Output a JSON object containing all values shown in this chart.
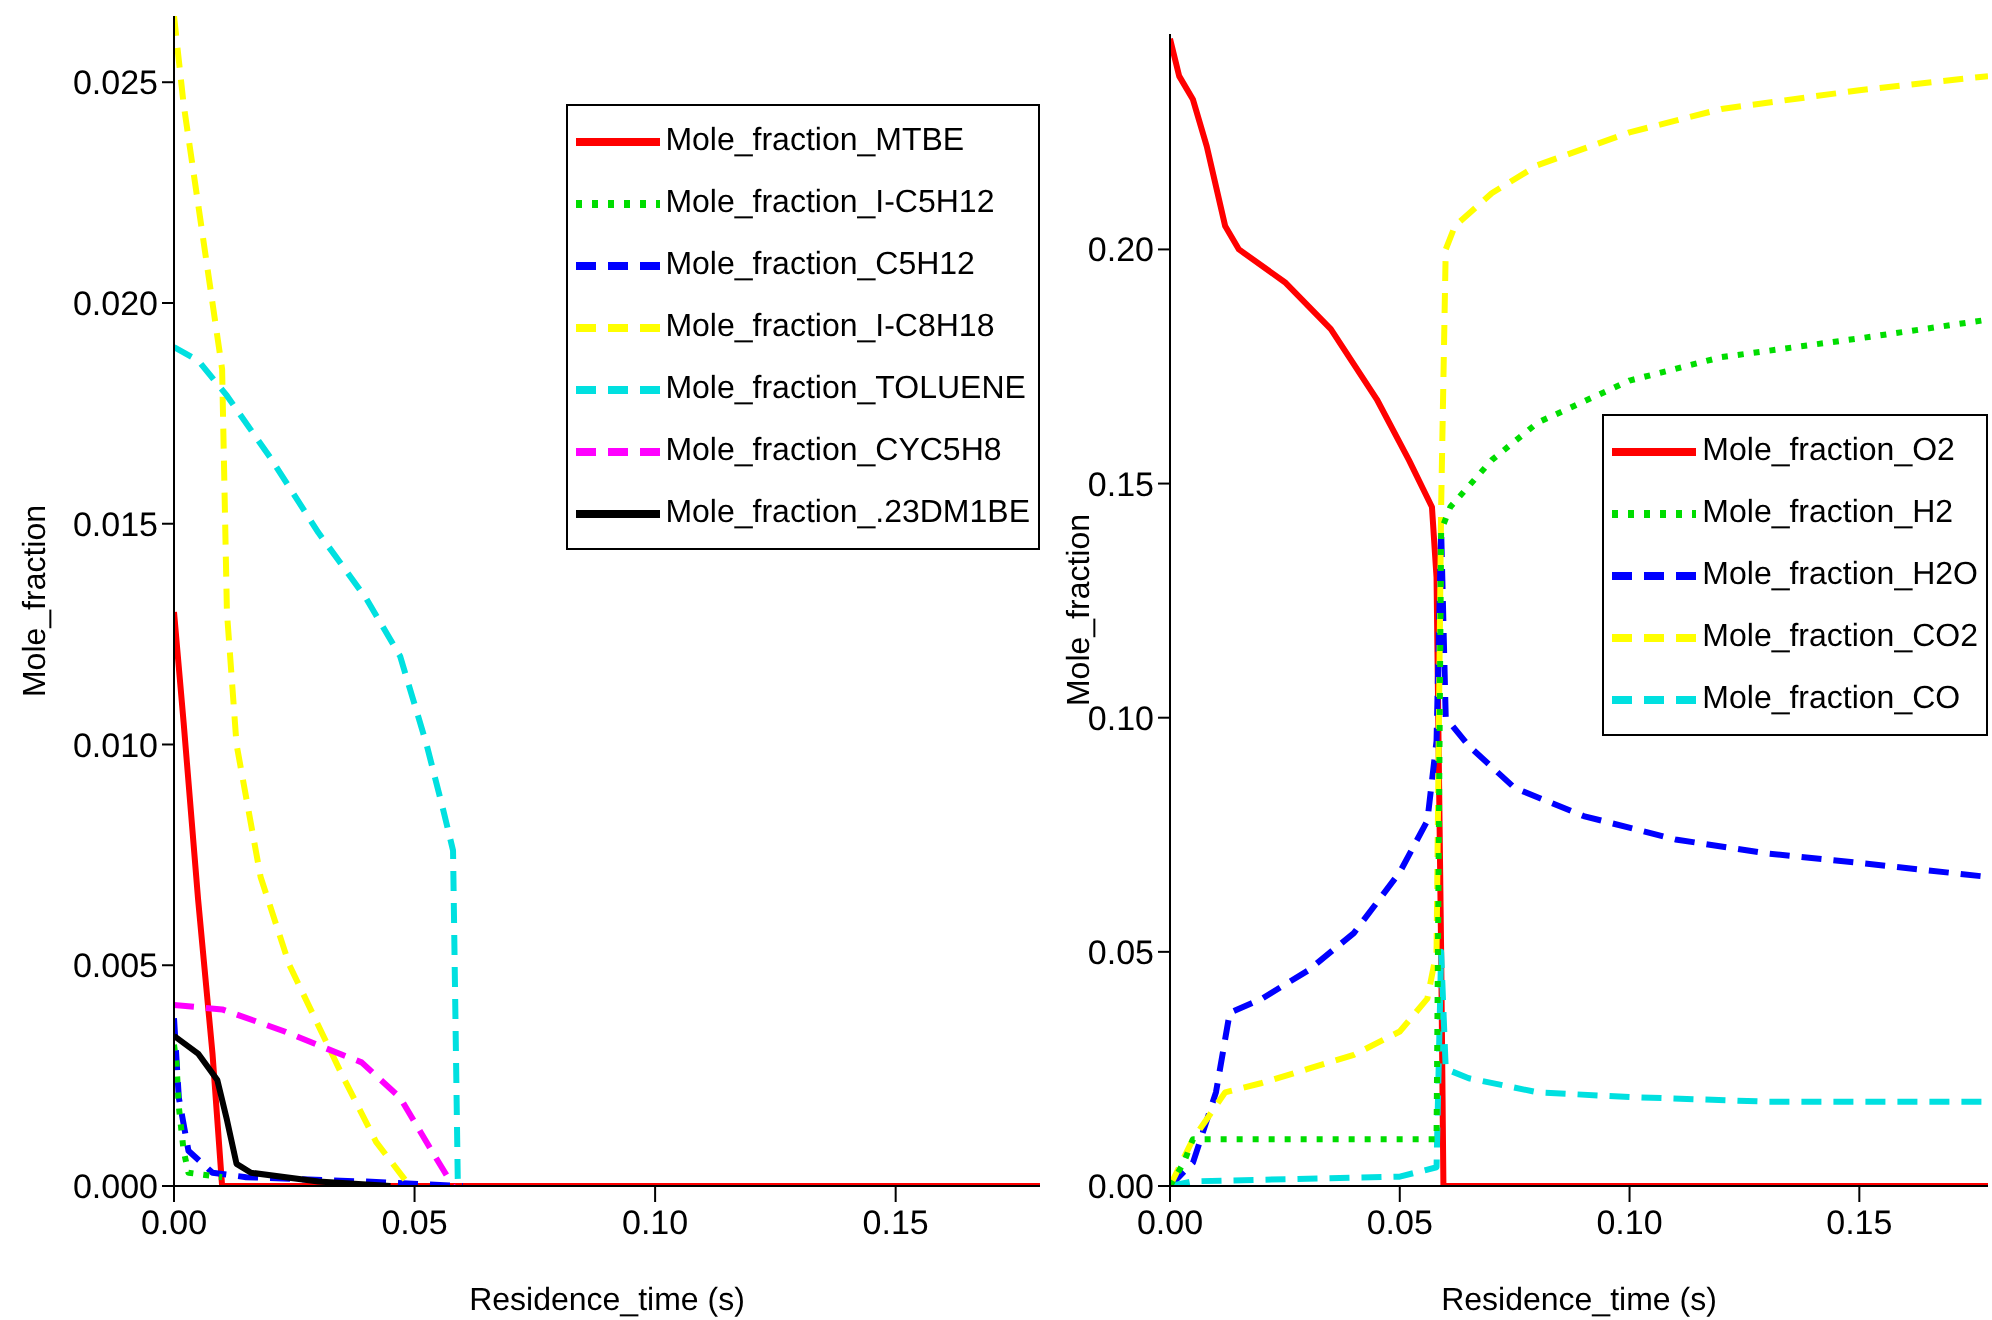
{
  "chart_data": [
    {
      "type": "line",
      "xlabel": "Residence_time (s)",
      "ylabel": "Mole_fraction",
      "xlim": [
        0,
        0.18
      ],
      "ylim": [
        0,
        0.0265
      ],
      "xticks": [
        {
          "value": 0,
          "label": "0.00"
        },
        {
          "value": 0.05,
          "label": "0.05"
        },
        {
          "value": 0.1,
          "label": "0.10"
        },
        {
          "value": 0.15,
          "label": "0.15"
        }
      ],
      "yticks": [
        {
          "value": 0,
          "label": "0.000"
        },
        0.005,
        {
          "value": 0.01,
          "label": "0.010"
        },
        0.015,
        {
          "value": 0.02,
          "label": "0.020"
        },
        0.025
      ],
      "legend": "top right",
      "grid": false,
      "marker": "none",
      "series": [
        {
          "name": "Mole_fraction_MTBE",
          "color": "#ff0000",
          "line_style": "solid",
          "x": [
            0,
            0.002,
            0.005,
            0.008,
            0.01,
            0.18
          ],
          "values": [
            0.013,
            0.0105,
            0.0065,
            0.003,
            0,
            0
          ]
        },
        {
          "name": "Mole_fraction_I-C5H12",
          "color": "#00dd00",
          "line_style": "dotted",
          "x": [
            0,
            0.0005,
            0.001,
            0.002,
            0.003,
            0.01
          ],
          "values": [
            0.0032,
            0.0028,
            0.0018,
            0.0008,
            0.0003,
            0.0002
          ]
        },
        {
          "name": "Mole_fraction_C5H12",
          "color": "#0000ff",
          "line_style": "dashed",
          "x": [
            0,
            0.001,
            0.003,
            0.008,
            0.015,
            0.04,
            0.06
          ],
          "values": [
            0.0038,
            0.002,
            0.0008,
            0.0003,
            0.0002,
            0.0001,
            0
          ]
        },
        {
          "name": "Mole_fraction_I-C8H18",
          "color": "#ffff00",
          "line_style": "dashed",
          "x": [
            0,
            0.002,
            0.006,
            0.01,
            0.011,
            0.013,
            0.018,
            0.024,
            0.035,
            0.042,
            0.049
          ],
          "values": [
            0.0265,
            0.0245,
            0.0215,
            0.0185,
            0.013,
            0.01,
            0.007,
            0.005,
            0.0025,
            0.001,
            0
          ]
        },
        {
          "name": "Mole_fraction_TOLUENE",
          "color": "#00e0e0",
          "line_style": "dashed",
          "x": [
            0,
            0.005,
            0.011,
            0.02,
            0.03,
            0.04,
            0.047,
            0.0525,
            0.056,
            0.058,
            0.059
          ],
          "values": [
            0.019,
            0.0187,
            0.0179,
            0.0165,
            0.0148,
            0.0133,
            0.012,
            0.01,
            0.0085,
            0.0076,
            0
          ]
        },
        {
          "name": "Mole_fraction_CYC5H8",
          "color": "#ff00ff",
          "line_style": "dashed",
          "x": [
            0,
            0.01,
            0.023,
            0.032,
            0.039,
            0.047,
            0.053,
            0.058
          ],
          "values": [
            0.0041,
            0.004,
            0.0035,
            0.0031,
            0.0028,
            0.002,
            0.0009,
            0
          ]
        },
        {
          "name": "Mole_fraction_.23DM1BE",
          "color": "#000000",
          "line_style": "solid",
          "x": [
            0,
            0.005,
            0.009,
            0.011,
            0.013,
            0.016,
            0.03,
            0.045
          ],
          "values": [
            0.0034,
            0.003,
            0.0024,
            0.0015,
            0.0005,
            0.0003,
            0.0001,
            0
          ]
        }
      ]
    },
    {
      "type": "line",
      "xlabel": "Residence_time (s)",
      "ylabel": "Mole_fraction",
      "xlim": [
        0,
        0.178
      ],
      "ylim": [
        0,
        0.246
      ],
      "xticks": [
        {
          "value": 0,
          "label": "0.00"
        },
        {
          "value": 0.05,
          "label": "0.05"
        },
        {
          "value": 0.1,
          "label": "0.10"
        },
        {
          "value": 0.15,
          "label": "0.15"
        }
      ],
      "yticks": [
        {
          "value": 0,
          "label": "0.00"
        },
        0.05,
        {
          "value": 0.1,
          "label": "0.10"
        },
        0.15,
        {
          "value": 0.2,
          "label": "0.20"
        }
      ],
      "legend": "right",
      "grid": false,
      "marker": "none",
      "series": [
        {
          "name": "Mole_fraction_O2",
          "color": "#ff0000",
          "line_style": "solid",
          "x": [
            0,
            0.002,
            0.005,
            0.008,
            0.012,
            0.015,
            0.025,
            0.035,
            0.045,
            0.052,
            0.057,
            0.058,
            0.059,
            0.0595,
            0.178
          ],
          "values": [
            0.245,
            0.237,
            0.232,
            0.222,
            0.205,
            0.2,
            0.193,
            0.183,
            0.168,
            0.155,
            0.145,
            0.13,
            0.05,
            0,
            0
          ]
        },
        {
          "name": "Mole_fraction_H2",
          "color": "#00dd00",
          "line_style": "dotted",
          "x": [
            0,
            0.003,
            0.005,
            0.058,
            0.059,
            0.061,
            0.07,
            0.08,
            0.1,
            0.12,
            0.15,
            0.178
          ],
          "values": [
            0,
            0.005,
            0.01,
            0.01,
            0.14,
            0.145,
            0.155,
            0.163,
            0.172,
            0.177,
            0.181,
            0.185
          ]
        },
        {
          "name": "Mole_fraction_H2O",
          "color": "#0000ff",
          "line_style": "dashed",
          "x": [
            0,
            0.005,
            0.01,
            0.013,
            0.02,
            0.03,
            0.04,
            0.05,
            0.056,
            0.058,
            0.059,
            0.06,
            0.065,
            0.075,
            0.09,
            0.11,
            0.13,
            0.15,
            0.178
          ],
          "values": [
            0,
            0.005,
            0.02,
            0.037,
            0.04,
            0.046,
            0.054,
            0.067,
            0.078,
            0.095,
            0.14,
            0.1,
            0.094,
            0.085,
            0.079,
            0.074,
            0.071,
            0.069,
            0.066
          ]
        },
        {
          "name": "Mole_fraction_CO2",
          "color": "#ffff00",
          "line_style": "dashed",
          "x": [
            0,
            0.005,
            0.012,
            0.02,
            0.03,
            0.04,
            0.05,
            0.056,
            0.058,
            0.059,
            0.06,
            0.062,
            0.07,
            0.08,
            0.1,
            0.12,
            0.15,
            0.178
          ],
          "values": [
            0,
            0.01,
            0.02,
            0.022,
            0.025,
            0.028,
            0.033,
            0.04,
            0.05,
            0.145,
            0.2,
            0.205,
            0.212,
            0.218,
            0.225,
            0.23,
            0.234,
            0.237
          ]
        },
        {
          "name": "Mole_fraction_CO",
          "color": "#00e0e0",
          "line_style": "dashed",
          "x": [
            0,
            0.005,
            0.05,
            0.058,
            0.059,
            0.06,
            0.065,
            0.08,
            0.1,
            0.13,
            0.178
          ],
          "values": [
            0,
            0.001,
            0.002,
            0.004,
            0.05,
            0.025,
            0.023,
            0.02,
            0.019,
            0.018,
            0.018
          ]
        }
      ]
    }
  ]
}
